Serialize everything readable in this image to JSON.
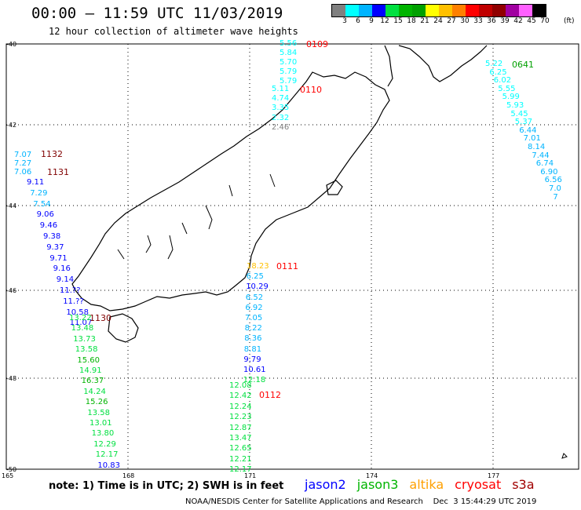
{
  "header": {
    "title": "00:00 – 11:59 UTC 11/03/2019",
    "subtitle": "12 hour collection of altimeter wave heights"
  },
  "colorbar": {
    "labels": [
      "3",
      "6",
      "9",
      "12",
      "15",
      "18",
      "21",
      "24",
      "27",
      "30",
      "33",
      "36",
      "39",
      "42",
      "45",
      "70"
    ],
    "colors": [
      "#808080",
      "#00ffff",
      "#00b4ff",
      "#0000ff",
      "#00e040",
      "#00b400",
      "#00a000",
      "#ffff00",
      "#ffc000",
      "#ff8000",
      "#ff0000",
      "#c00000",
      "#900000",
      "#a000a0",
      "#ff60ff",
      "#000000"
    ],
    "unit": "(ft)"
  },
  "axes": {
    "lat_labels": [
      "-40",
      "-42",
      "-44",
      "-46",
      "-48",
      "-50"
    ],
    "lon_labels": [
      "165",
      "168",
      "171",
      "174",
      "177"
    ]
  },
  "tracks": [
    {
      "label": "0109",
      "label_color": "#ff0000",
      "values": [
        "5.56",
        "5.84",
        "5.70",
        "5.79",
        "5.79"
      ],
      "colors": [
        "#00ffff",
        "#00ffff",
        "#00ffff",
        "#00ffff",
        "#00ffff"
      ]
    },
    {
      "label": "0110",
      "label_color": "#ff0000",
      "values": [
        "5.11",
        "4.74",
        "3.35",
        "2.32",
        "2.46"
      ],
      "colors": [
        "#00ffff",
        "#00ffff",
        "#00ffff",
        "#00ffff",
        "#808080"
      ]
    },
    {
      "label": "0641",
      "label_color": "#00a000",
      "values": [
        "5.22",
        "6.25",
        "6.02",
        "5.55",
        "5.99",
        "5.93",
        "5.45",
        "5.37",
        "6.44",
        "7.01",
        "8.14",
        "7.44",
        "6.74",
        "6.90",
        "6.56",
        "7.0",
        "7"
      ],
      "colors": [
        "#00ffff",
        "#00ffff",
        "#00ffff",
        "#00ffff",
        "#00ffff",
        "#00ffff",
        "#00ffff",
        "#00ffff",
        "#00b4ff",
        "#00b4ff",
        "#00b4ff",
        "#00b4ff",
        "#00b4ff",
        "#00b4ff",
        "#00b4ff",
        "#00b4ff",
        "#00b4ff"
      ]
    },
    {
      "label": "1132",
      "label_color": "#800000",
      "values": [
        "7.07",
        "7.27",
        "7.06"
      ],
      "colors": [
        "#00b4ff",
        "#00b4ff",
        "#00b4ff"
      ]
    },
    {
      "label": "1131",
      "label_color": "#800000",
      "values": [
        "9.11",
        "7.29",
        "7.54",
        "9.06",
        "9.46",
        "9.38",
        "9.37",
        "9.71",
        "9.16",
        "9.14",
        "11.??",
        "11.??",
        "10.58",
        "11.07"
      ],
      "colors": [
        "#0000ff",
        "#00b4ff",
        "#00b4ff",
        "#0000ff",
        "#0000ff",
        "#0000ff",
        "#0000ff",
        "#0000ff",
        "#0000ff",
        "#0000ff",
        "#0000ff",
        "#0000ff",
        "#0000ff",
        "#0000ff"
      ]
    },
    {
      "label": "1130",
      "label_color": "#800000",
      "values": [
        "13.22",
        "13.48",
        "13.73",
        "13.58",
        "15.60",
        "14.91",
        "16.37",
        "14.24",
        "15.26",
        "13.58",
        "13.01",
        "13.80",
        "12.29",
        "12.17",
        "10.83"
      ],
      "colors": [
        "#00e040",
        "#00e040",
        "#00e040",
        "#00e040",
        "#00b400",
        "#00e040",
        "#00b400",
        "#00e040",
        "#00b400",
        "#00e040",
        "#00e040",
        "#00e040",
        "#00e040",
        "#00e040",
        "#0000ff"
      ]
    },
    {
      "label": "0111",
      "label_color": "#ff0000",
      "values": [
        "18.23",
        "6.25",
        "10.29",
        "6.52",
        "6.92",
        "7.05",
        "8.22",
        "8.36",
        "8.81",
        "9.79",
        "10.61",
        "12.18"
      ],
      "colors": [
        "#ffc000",
        "#00b4ff",
        "#0000ff",
        "#00b4ff",
        "#00b4ff",
        "#00b4ff",
        "#00b4ff",
        "#00b4ff",
        "#00b4ff",
        "#0000ff",
        "#0000ff",
        "#00e040"
      ]
    },
    {
      "label": "0112",
      "label_color": "#ff0000",
      "values": [
        "12.08",
        "12.42",
        "12.24",
        "12.23",
        "12.87",
        "13.47",
        "12.65",
        "12.21",
        "12.17"
      ],
      "colors": [
        "#00e040",
        "#00e040",
        "#00e040",
        "#00e040",
        "#00e040",
        "#00e040",
        "#00e040",
        "#00e040",
        "#00e040"
      ]
    }
  ],
  "note": "note: 1) Time is in UTC; 2) SWH is in feet",
  "legend": [
    {
      "name": "jason2",
      "color": "#0000ff"
    },
    {
      "name": "jason3",
      "color": "#00b400"
    },
    {
      "name": "altika",
      "color": "#ffa000"
    },
    {
      "name": "cryosat",
      "color": "#ff0000"
    },
    {
      "name": "s3a",
      "color": "#a00000"
    }
  ],
  "footer": "NOAA/NESDIS Center for Satellite Applications and Research    Dec  3 15:44:29 UTC 2019"
}
